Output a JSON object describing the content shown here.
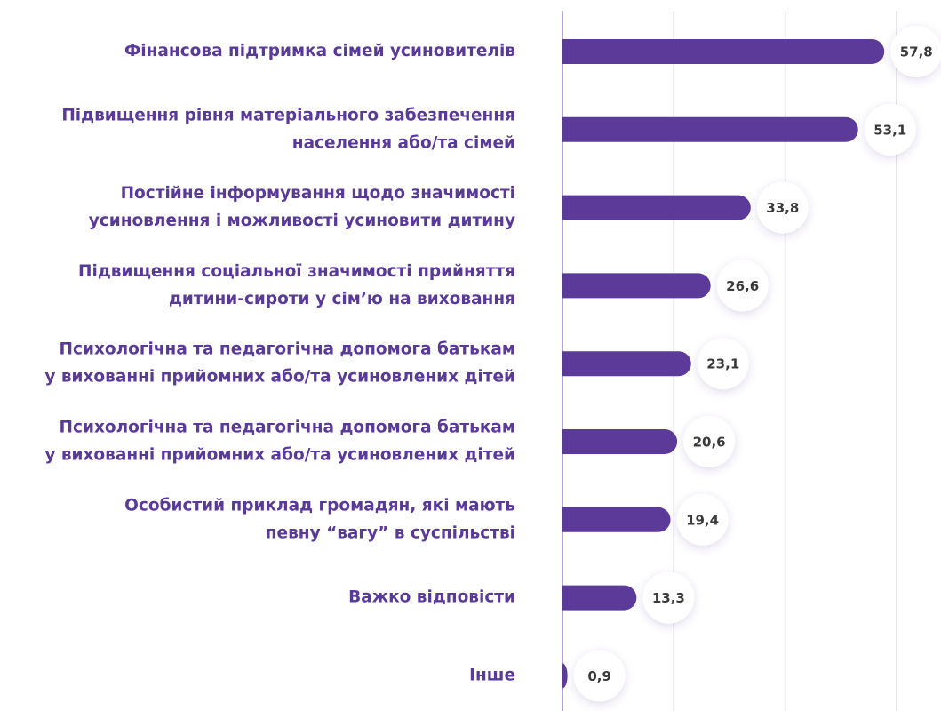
{
  "chart_data": {
    "type": "bar",
    "orientation": "horizontal",
    "categories": [
      [
        "Фінансова підтримка сімей усиновителів"
      ],
      [
        "Підвищення рівня матеріального забезпечення",
        "населення або/та сімей"
      ],
      [
        "Постійне інформування щодо значимості",
        "усиновлення і можливості усиновити дитину"
      ],
      [
        "Підвищення соціальної значимості прийняття",
        "дитини-сироти у сім’ю на виховання"
      ],
      [
        "Психологічна та педагогічна допомога батькам",
        "у вихованні прийомних або/та усиновлених дітей"
      ],
      [
        "Психологічна та педагогічна допомога батькам",
        "у вихованні прийомних або/та усиновлених дітей"
      ],
      [
        "Особистий приклад громадян, які мають",
        "певну “вагу” в суспільстві"
      ],
      [
        "Важко відповісти"
      ],
      [
        "Інше"
      ]
    ],
    "values": [
      57.8,
      53.1,
      33.8,
      26.6,
      23.1,
      20.6,
      19.4,
      13.3,
      0.9
    ],
    "value_labels": [
      "57,8",
      "53,1",
      "33,8",
      "26,6",
      "23,1",
      "20,6",
      "19,4",
      "13,3",
      "0,9"
    ],
    "color": "#5b3a9a",
    "xlim": [
      0,
      60
    ],
    "xticks": [
      0,
      20,
      40,
      60
    ],
    "grid": true
  }
}
